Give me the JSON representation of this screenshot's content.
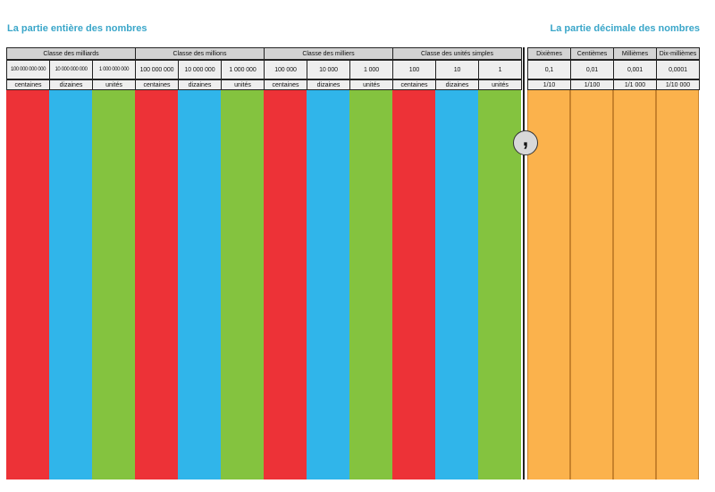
{
  "titles": {
    "left": "La partie entière des nombres",
    "right": "La partie décimale des nombres"
  },
  "integer_classes": [
    {
      "name": "Classe des milliards",
      "columns": [
        {
          "value": "100 000 000 000",
          "rank": "centaines",
          "color": "#ed3237"
        },
        {
          "value": "10 000 000 000",
          "rank": "dizaines",
          "color": "#30b5ea"
        },
        {
          "value": "1 000 000 000",
          "rank": "unités",
          "color": "#84c33f"
        }
      ]
    },
    {
      "name": "Classe des millions",
      "columns": [
        {
          "value": "100 000 000",
          "rank": "centaines",
          "color": "#ed3237"
        },
        {
          "value": "10 000 000",
          "rank": "dizaines",
          "color": "#30b5ea"
        },
        {
          "value": "1 000 000",
          "rank": "unités",
          "color": "#84c33f"
        }
      ]
    },
    {
      "name": "Classe des milliers",
      "columns": [
        {
          "value": "100 000",
          "rank": "centaines",
          "color": "#ed3237"
        },
        {
          "value": "10 000",
          "rank": "dizaines",
          "color": "#30b5ea"
        },
        {
          "value": "1 000",
          "rank": "unités",
          "color": "#84c33f"
        }
      ]
    },
    {
      "name": "Classe des unités simples",
      "columns": [
        {
          "value": "100",
          "rank": "centaines",
          "color": "#ed3237"
        },
        {
          "value": "10",
          "rank": "dizaines",
          "color": "#30b5ea"
        },
        {
          "value": "1",
          "rank": "unités",
          "color": "#84c33f"
        }
      ]
    }
  ],
  "decimal_columns": [
    {
      "name": "Dixièmes",
      "value": "0,1",
      "fraction": "1/10",
      "color": "#fbb24c"
    },
    {
      "name": "Centièmes",
      "value": "0,01",
      "fraction": "1/100",
      "color": "#fbb24c"
    },
    {
      "name": "Millièmes",
      "value": "0,001",
      "fraction": "1/1 000",
      "color": "#fbb24c"
    },
    {
      "name": "Dix-millièmes",
      "value": "0,0001",
      "fraction": "1/10 000",
      "color": "#fbb24c"
    }
  ],
  "decimal_separator": ","
}
